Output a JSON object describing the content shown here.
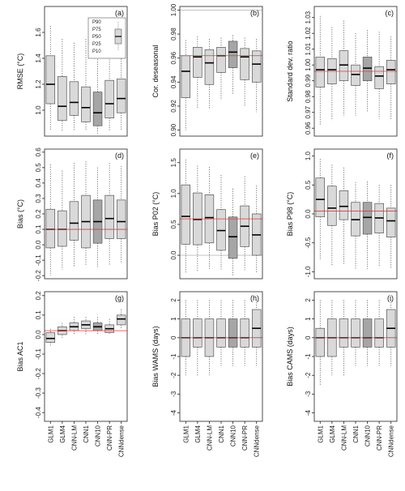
{
  "chart_data": [
    {
      "panel": "(a)",
      "type": "boxplot",
      "ylabel": "RMSE (°C)",
      "ylim": [
        0.8,
        1.8
      ],
      "ticks": [
        1.0,
        1.2,
        1.4,
        1.6
      ],
      "tick_labels": [
        "1.0",
        "1.2",
        "1.4",
        "1.6"
      ],
      "hline": null,
      "legend": {
        "labels": [
          "P90",
          "P75",
          "P50",
          "P25",
          "P10"
        ]
      },
      "boxes": [
        {
          "p10": 0.84,
          "p25": 1.05,
          "p50": 1.2,
          "p75": 1.42,
          "p90": 1.65
        },
        {
          "p10": 0.84,
          "p25": 0.92,
          "p50": 1.03,
          "p75": 1.26,
          "p90": 1.55
        },
        {
          "p10": 0.84,
          "p25": 0.96,
          "p50": 1.06,
          "p75": 1.22,
          "p90": 1.52
        },
        {
          "p10": 0.84,
          "p25": 0.91,
          "p50": 1.02,
          "p75": 1.18,
          "p90": 1.55
        },
        {
          "p10": 0.82,
          "p25": 0.88,
          "p50": 0.98,
          "p75": 1.14,
          "p90": 1.55
        },
        {
          "p10": 0.84,
          "p25": 0.94,
          "p50": 1.05,
          "p75": 1.23,
          "p90": 1.46
        },
        {
          "p10": 0.84,
          "p25": 0.98,
          "p50": 1.09,
          "p75": 1.24,
          "p90": 1.52
        }
      ]
    },
    {
      "panel": "(b)",
      "type": "boxplot",
      "ylabel": "Cor. deseasonal",
      "ylim": [
        0.895,
        1.003
      ],
      "ticks": [
        0.9,
        0.92,
        0.94,
        0.96,
        0.98,
        1.0
      ],
      "tick_labels": [
        "0.90",
        "0.92",
        "0.94",
        "0.96",
        "0.98",
        "1.00"
      ],
      "hline": 0.962,
      "top_line": 1.0,
      "boxes": [
        {
          "p10": 0.9,
          "p25": 0.927,
          "p50": 0.949,
          "p75": 0.962,
          "p90": 0.975
        },
        {
          "p10": 0.918,
          "p25": 0.944,
          "p50": 0.961,
          "p75": 0.969,
          "p90": 0.978
        },
        {
          "p10": 0.918,
          "p25": 0.938,
          "p50": 0.956,
          "p75": 0.967,
          "p90": 0.976
        },
        {
          "p10": 0.925,
          "p25": 0.948,
          "p50": 0.962,
          "p75": 0.969,
          "p90": 0.977
        },
        {
          "p10": 0.93,
          "p25": 0.952,
          "p50": 0.965,
          "p75": 0.974,
          "p90": 0.979
        },
        {
          "p10": 0.92,
          "p25": 0.942,
          "p50": 0.961,
          "p75": 0.968,
          "p90": 0.977
        },
        {
          "p10": 0.915,
          "p25": 0.94,
          "p50": 0.955,
          "p75": 0.966,
          "p90": 0.976
        }
      ]
    },
    {
      "panel": "(c)",
      "type": "boxplot",
      "ylabel": "Standard dev. ratio",
      "ylim": [
        0.955,
        1.037
      ],
      "ticks": [
        0.96,
        0.97,
        0.98,
        0.99,
        1.0,
        1.01,
        1.02,
        1.03
      ],
      "tick_labels": [
        "0.96",
        "0.97",
        "0.98",
        "0.99",
        "1.00",
        "1.01",
        "1.02",
        "1.03"
      ],
      "hline": 0.996,
      "boxes": [
        {
          "p10": 0.962,
          "p25": 0.986,
          "p50": 0.997,
          "p75": 1.005,
          "p90": 1.031
        },
        {
          "p10": 0.965,
          "p25": 0.988,
          "p50": 0.997,
          "p75": 1.004,
          "p90": 1.024
        },
        {
          "p10": 0.968,
          "p25": 0.99,
          "p50": 1.0,
          "p75": 1.009,
          "p90": 1.028
        },
        {
          "p10": 0.968,
          "p25": 0.987,
          "p50": 0.994,
          "p75": 1.0,
          "p90": 1.02
        },
        {
          "p10": 0.97,
          "p25": 0.99,
          "p50": 0.998,
          "p75": 1.005,
          "p90": 1.022
        },
        {
          "p10": 0.966,
          "p25": 0.985,
          "p50": 0.993,
          "p75": 0.999,
          "p90": 1.021
        },
        {
          "p10": 0.965,
          "p25": 0.988,
          "p50": 0.997,
          "p75": 1.003,
          "p90": 1.018
        }
      ]
    },
    {
      "panel": "(d)",
      "type": "boxplot",
      "ylabel": "Bias (°C)",
      "ylim": [
        -0.22,
        0.62
      ],
      "ticks": [
        -0.2,
        -0.1,
        0.0,
        0.1,
        0.2,
        0.3,
        0.4,
        0.5,
        0.6
      ],
      "tick_labels": [
        "-0.2",
        "-0.1",
        "0.0",
        "0.1",
        "0.2",
        "0.3",
        "0.4",
        "0.5",
        "0.6"
      ],
      "hline": 0.1,
      "boxes": [
        {
          "p10": -0.2,
          "p25": -0.02,
          "p50": 0.1,
          "p75": 0.23,
          "p90": 0.52
        },
        {
          "p10": -0.16,
          "p25": -0.01,
          "p50": 0.1,
          "p75": 0.22,
          "p90": 0.48
        },
        {
          "p10": -0.14,
          "p25": 0.03,
          "p50": 0.14,
          "p75": 0.28,
          "p90": 0.53
        },
        {
          "p10": -0.13,
          "p25": -0.02,
          "p50": 0.15,
          "p75": 0.32,
          "p90": 0.54
        },
        {
          "p10": -0.15,
          "p25": 0.01,
          "p50": 0.15,
          "p75": 0.29,
          "p90": 0.5
        },
        {
          "p10": -0.13,
          "p25": 0.04,
          "p50": 0.17,
          "p75": 0.32,
          "p90": 0.53
        },
        {
          "p10": -0.12,
          "p25": 0.04,
          "p50": 0.15,
          "p75": 0.29,
          "p90": 0.51
        }
      ]
    },
    {
      "panel": "(e)",
      "type": "boxplot",
      "ylabel": "Bias P02 (°C)",
      "ylim": [
        -0.38,
        1.72
      ],
      "ticks": [
        0.0,
        0.5,
        1.0,
        1.5
      ],
      "tick_labels": [
        "0.0",
        "0.5",
        "1.0",
        "1.5"
      ],
      "hline": 0.59,
      "zero_line": 0.0,
      "boxes": [
        {
          "p10": -0.3,
          "p25": 0.18,
          "p50": 0.63,
          "p75": 1.14,
          "p90": 1.55
        },
        {
          "p10": -0.25,
          "p25": 0.17,
          "p50": 0.58,
          "p75": 1.01,
          "p90": 1.45
        },
        {
          "p10": -0.22,
          "p25": 0.2,
          "p50": 0.61,
          "p75": 0.98,
          "p90": 1.43
        },
        {
          "p10": -0.25,
          "p25": 0.08,
          "p50": 0.4,
          "p75": 0.74,
          "p90": 1.3
        },
        {
          "p10": -0.33,
          "p25": -0.05,
          "p50": 0.3,
          "p75": 0.62,
          "p90": 1.08
        },
        {
          "p10": -0.24,
          "p25": 0.14,
          "p50": 0.47,
          "p75": 0.8,
          "p90": 1.28
        },
        {
          "p10": -0.28,
          "p25": 0.0,
          "p50": 0.33,
          "p75": 0.67,
          "p90": 1.13
        }
      ]
    },
    {
      "panel": "(f)",
      "type": "boxplot",
      "ylabel": "Bias P98 (°C)",
      "ylim": [
        -1.12,
        1.12
      ],
      "ticks": [
        -1.0,
        -0.5,
        0.0,
        0.5,
        1.0
      ],
      "tick_labels": [
        "-1.0",
        "-0.5",
        "0.0",
        "0.5",
        "1.0"
      ],
      "hline": 0.05,
      "boxes": [
        {
          "p10": -0.8,
          "p25": -0.05,
          "p50": 0.25,
          "p75": 0.62,
          "p90": 0.95
        },
        {
          "p10": -0.9,
          "p25": -0.2,
          "p50": 0.1,
          "p75": 0.48,
          "p90": 0.85
        },
        {
          "p10": -0.88,
          "p25": -0.1,
          "p50": 0.13,
          "p75": 0.4,
          "p90": 0.8
        },
        {
          "p10": -0.95,
          "p25": -0.38,
          "p50": -0.1,
          "p75": 0.2,
          "p90": 0.55
        },
        {
          "p10": -0.95,
          "p25": -0.35,
          "p50": -0.06,
          "p75": 0.2,
          "p90": 0.56
        },
        {
          "p10": -0.92,
          "p25": -0.33,
          "p50": -0.07,
          "p75": 0.18,
          "p90": 0.5
        },
        {
          "p10": -0.95,
          "p25": -0.4,
          "p50": -0.12,
          "p75": 0.1,
          "p90": 0.5
        }
      ]
    },
    {
      "panel": "(g)",
      "type": "boxplot",
      "ylabel": "Bias AC1",
      "ylim": [
        -0.445,
        0.22
      ],
      "ticks": [
        -0.4,
        -0.3,
        -0.2,
        -0.1,
        0.0,
        0.1,
        0.2
      ],
      "tick_labels": [
        "-0.4",
        "-0.3",
        "-0.2",
        "-0.1",
        "0.0",
        "0.1",
        "0.2"
      ],
      "hline": 0.02,
      "boxes": [
        {
          "p10": -0.06,
          "p25": -0.04,
          "p50": -0.02,
          "p75": 0.01,
          "p90": 0.03
        },
        {
          "p10": -0.02,
          "p25": 0.0,
          "p50": 0.02,
          "p75": 0.04,
          "p90": 0.06
        },
        {
          "p10": 0.0,
          "p25": 0.02,
          "p50": 0.04,
          "p75": 0.06,
          "p90": 0.09
        },
        {
          "p10": 0.0,
          "p25": 0.03,
          "p50": 0.05,
          "p75": 0.07,
          "p90": 0.09
        },
        {
          "p10": 0.0,
          "p25": 0.02,
          "p50": 0.04,
          "p75": 0.06,
          "p90": 0.09
        },
        {
          "p10": 0.0,
          "p25": 0.01,
          "p50": 0.03,
          "p75": 0.05,
          "p90": 0.08
        },
        {
          "p10": 0.03,
          "p25": 0.05,
          "p50": 0.08,
          "p75": 0.1,
          "p90": 0.13
        }
      ]
    },
    {
      "panel": "(h)",
      "type": "boxplot",
      "ylabel": "Bias WAMS (days)",
      "ylim": [
        -4.45,
        2.45
      ],
      "ticks": [
        -4,
        -3,
        -2,
        -1,
        0,
        1,
        2
      ],
      "tick_labels": [
        "-4",
        "-3",
        "-2",
        "-1",
        "0",
        "1",
        "2"
      ],
      "hline": 0.0,
      "boxes": [
        {
          "p10": -2.0,
          "p25": -1.0,
          "p50": 0.0,
          "p75": 1.0,
          "p90": 2.0
        },
        {
          "p10": -2.0,
          "p25": -0.5,
          "p50": 0.0,
          "p75": 1.0,
          "p90": 2.0
        },
        {
          "p10": -2.0,
          "p25": -1.0,
          "p50": 0.0,
          "p75": 1.0,
          "p90": 2.0
        },
        {
          "p10": -1.5,
          "p25": -0.5,
          "p50": 0.0,
          "p75": 1.0,
          "p90": 2.0
        },
        {
          "p10": -1.5,
          "p25": -0.5,
          "p50": 0.0,
          "p75": 1.0,
          "p90": 2.0
        },
        {
          "p10": -1.5,
          "p25": -0.5,
          "p50": 0.0,
          "p75": 1.0,
          "p90": 2.0
        },
        {
          "p10": -1.5,
          "p25": -0.5,
          "p50": 0.5,
          "p75": 1.5,
          "p90": 2.0
        }
      ]
    },
    {
      "panel": "(i)",
      "type": "boxplot",
      "ylabel": "Bias CAMS (days)",
      "ylim": [
        -4.45,
        2.45
      ],
      "ticks": [
        -4,
        -3,
        -2,
        -1,
        0,
        1,
        2
      ],
      "tick_labels": [
        "-4",
        "-3",
        "-2",
        "-1",
        "0",
        "1",
        "2"
      ],
      "hline": 0.0,
      "boxes": [
        {
          "p10": -2.5,
          "p25": -1.0,
          "p50": 0.0,
          "p75": 0.5,
          "p90": 2.0
        },
        {
          "p10": -2.0,
          "p25": -1.0,
          "p50": 0.0,
          "p75": 1.0,
          "p90": 2.0
        },
        {
          "p10": -2.0,
          "p25": -0.5,
          "p50": 0.0,
          "p75": 1.0,
          "p90": 2.0
        },
        {
          "p10": -1.5,
          "p25": -0.5,
          "p50": 0.0,
          "p75": 1.0,
          "p90": 2.0
        },
        {
          "p10": -1.5,
          "p25": -0.5,
          "p50": 0.0,
          "p75": 1.0,
          "p90": 2.0
        },
        {
          "p10": -1.5,
          "p25": -0.5,
          "p50": 0.0,
          "p75": 1.0,
          "p90": 2.0
        },
        {
          "p10": -1.5,
          "p25": -0.5,
          "p50": 0.5,
          "p75": 1.5,
          "p90": 2.0
        }
      ]
    }
  ],
  "models": [
    "GLM1",
    "GLM4",
    "CNN-LM",
    "CNN1",
    "CNN10",
    "CNN-PR",
    "CNNdense"
  ],
  "highlight_index": 4,
  "colors": {
    "box_fill": "#d9d9d9",
    "box_fill_highlight": "#a6a6a6",
    "box_stroke": "#555555",
    "median": "#000000",
    "ref_line": "#e53935",
    "zero_line": "#bbbbbb",
    "whisker": "#555555"
  }
}
